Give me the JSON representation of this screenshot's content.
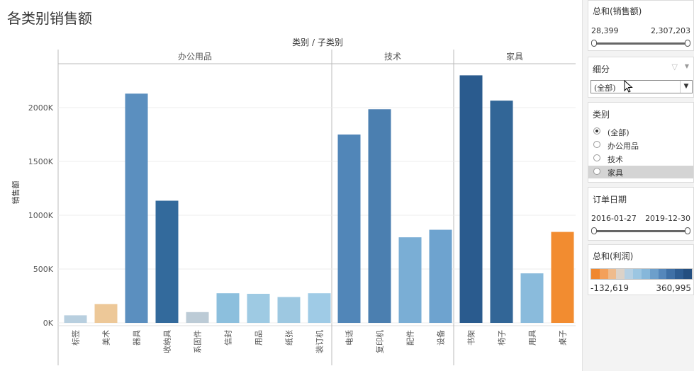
{
  "page_title": "各类别销售额",
  "chart_data": {
    "type": "bar",
    "header": "类别 / 子类别",
    "ylabel": "销售额",
    "ylim": [
      0,
      2400000
    ],
    "yticks": [
      0,
      500000,
      1000000,
      1500000,
      2000000
    ],
    "ytick_labels": [
      "0K",
      "500K",
      "1000K",
      "1500K",
      "2000K"
    ],
    "groups": [
      {
        "name": "办公用品",
        "bars": [
          {
            "label": "标签",
            "value": 70000,
            "color": "#b8cfdf"
          },
          {
            "label": "美术",
            "value": 175000,
            "color": "#edc898"
          },
          {
            "label": "器具",
            "value": 2130000,
            "color": "#5b8fbf"
          },
          {
            "label": "收纳具",
            "value": 1135000,
            "color": "#336a9c"
          },
          {
            "label": "系固件",
            "value": 100000,
            "color": "#bccbd6"
          },
          {
            "label": "信封",
            "value": 275000,
            "color": "#8cbfdd"
          },
          {
            "label": "用品",
            "value": 270000,
            "color": "#9ecae3"
          },
          {
            "label": "纸张",
            "value": 240000,
            "color": "#9dc8e1"
          },
          {
            "label": "装订机",
            "value": 275000,
            "color": "#9fcbe6"
          }
        ]
      },
      {
        "name": "技术",
        "bars": [
          {
            "label": "电话",
            "value": 1750000,
            "color": "#5186b8"
          },
          {
            "label": "复印机",
            "value": 1985000,
            "color": "#4b7fb0"
          },
          {
            "label": "配件",
            "value": 795000,
            "color": "#7aaed5"
          },
          {
            "label": "设备",
            "value": 865000,
            "color": "#6ea3cf"
          }
        ]
      },
      {
        "name": "家具",
        "bars": [
          {
            "label": "书架",
            "value": 2300000,
            "color": "#2a5b8e"
          },
          {
            "label": "椅子",
            "value": 2065000,
            "color": "#326697"
          },
          {
            "label": "用具",
            "value": 460000,
            "color": "#8abbdc"
          },
          {
            "label": "桌子",
            "value": 845000,
            "color": "#f28c30"
          }
        ]
      }
    ]
  },
  "filters": {
    "sales": {
      "title": "总和(销售额)",
      "min_label": "28,399",
      "max_label": "2,307,203"
    },
    "segment": {
      "title": "细分",
      "value": "(全部)"
    },
    "category": {
      "title": "类别",
      "options": [
        "(全部)",
        "办公用品",
        "技术",
        "家具"
      ],
      "checked": 0,
      "highlight": 3
    },
    "order_date": {
      "title": "订单日期",
      "min_label": "2016-01-27",
      "max_label": "2019-12-30"
    },
    "profit": {
      "title": "总和(利润)",
      "min_label": "-132,619",
      "max_label": "360,995",
      "colors": [
        "#f0872e",
        "#f3a05a",
        "#efbb8c",
        "#dcd2c8",
        "#b6d0e3",
        "#9cc6e2",
        "#86b7da",
        "#6d9fcb",
        "#5587bb",
        "#3f70a6",
        "#2e5d92",
        "#244f80"
      ]
    }
  }
}
